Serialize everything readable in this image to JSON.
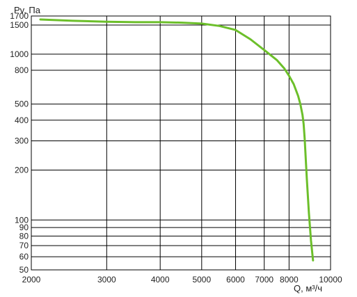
{
  "chart_data": {
    "type": "line",
    "title": "",
    "ylabel": "Pv, Па",
    "xlabel": "Q, м³/ч",
    "x_scale": "log",
    "y_scale": "log",
    "xlim": [
      2000,
      10000
    ],
    "ylim": [
      50,
      1700
    ],
    "grid": true,
    "x_ticks": [
      2000,
      3000,
      4000,
      5000,
      6000,
      7000,
      8000,
      10000
    ],
    "y_ticks": [
      50,
      60,
      70,
      80,
      90,
      100,
      200,
      300,
      400,
      500,
      800,
      1000,
      1500,
      1700
    ],
    "series": [
      {
        "color": "#6cbf2a",
        "x": [
          2100,
          2500,
          3000,
          3500,
          4000,
          4500,
          5000,
          5500,
          6000,
          6500,
          7000,
          7500,
          7800,
          8000,
          8200,
          8400,
          8500,
          8600,
          8650,
          8700,
          8800,
          8900,
          9000,
          9100
        ],
        "y": [
          1620,
          1590,
          1570,
          1560,
          1560,
          1550,
          1530,
          1480,
          1400,
          1230,
          1060,
          920,
          820,
          740,
          660,
          560,
          500,
          430,
          380,
          310,
          180,
          110,
          75,
          57
        ]
      }
    ]
  }
}
